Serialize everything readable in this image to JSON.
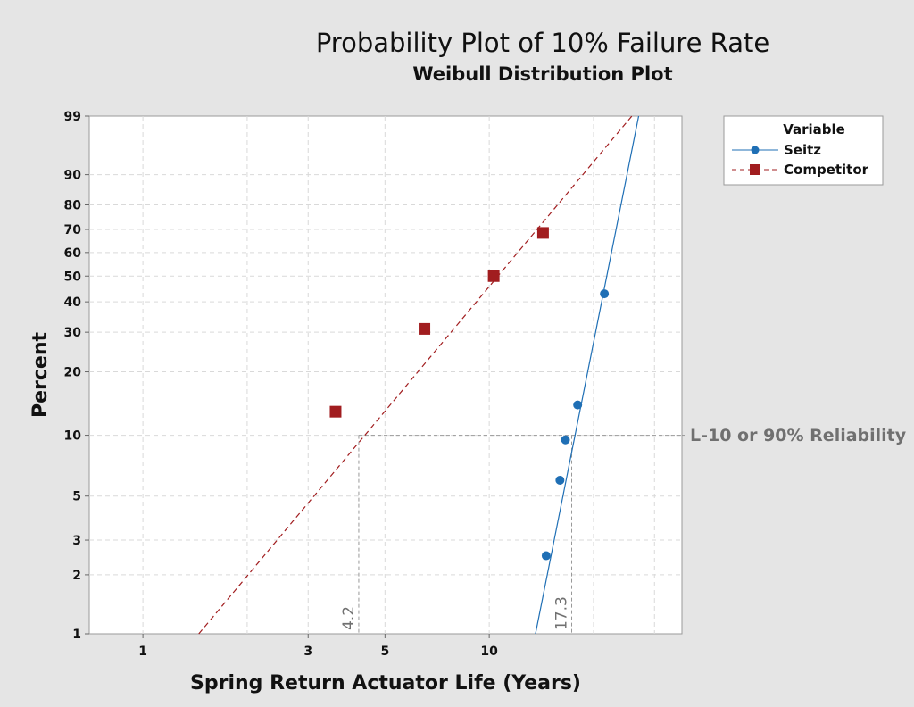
{
  "chart_data": {
    "type": "scatter",
    "title": "Probability Plot of 10% Failure Rate",
    "subtitle": "Weibull Distribution Plot",
    "xlabel": "Spring Return Actuator Life (Years)",
    "ylabel": "Percent",
    "x_scale": "log",
    "y_scale": "weibull",
    "xlim": [
      0.7,
      36
    ],
    "ylim": [
      1,
      99
    ],
    "x_ticks": [
      1,
      3,
      5,
      10
    ],
    "y_ticks": [
      1,
      2,
      3,
      5,
      10,
      20,
      30,
      40,
      50,
      60,
      70,
      80,
      90,
      99
    ],
    "legend": {
      "title": "Variable",
      "position": "top-right"
    },
    "series": [
      {
        "name": "Seitz",
        "color": "#1f6fb5",
        "marker": "circle",
        "line_style": "solid",
        "points": [
          [
            14.6,
            2.5
          ],
          [
            16.0,
            6.0
          ],
          [
            16.6,
            9.5
          ],
          [
            18.0,
            14.0
          ],
          [
            21.5,
            43.0
          ]
        ],
        "fit_line": [
          [
            13.6,
            1
          ],
          [
            27.0,
            99
          ]
        ]
      },
      {
        "name": "Competitor",
        "color": "#a11d1f",
        "marker": "square",
        "line_style": "dashed",
        "points": [
          [
            3.6,
            13.0
          ],
          [
            6.5,
            31.0
          ],
          [
            10.3,
            50.0
          ],
          [
            14.3,
            68.5
          ]
        ],
        "fit_line": [
          [
            1.45,
            1
          ],
          [
            25.8,
            99
          ]
        ]
      }
    ],
    "annotations": {
      "reliability_label": "L-10 or 90% Reliability",
      "reliability_percent": 10,
      "competitor_l10": "4.2",
      "competitor_l10_value": 4.2,
      "seitz_l10": "17.3",
      "seitz_l10_value": 17.3
    }
  }
}
